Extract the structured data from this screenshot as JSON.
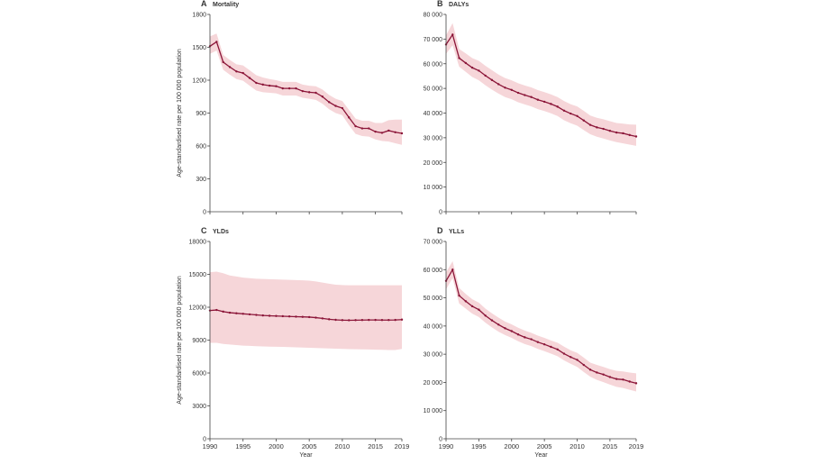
{
  "colors": {
    "line": "#8b1538",
    "band": "#f6d6d9",
    "axis": "#444444"
  },
  "chart_data": [
    {
      "type": "line",
      "panel_letter": "A",
      "title": "Mortality",
      "ylabel": "Age-standardised rate per 100 000 population",
      "xlabel": "",
      "ylim": [
        0,
        1800
      ],
      "yticks": [
        0,
        300,
        600,
        900,
        1200,
        1500,
        1800
      ],
      "ytick_labels": [
        "0",
        "300",
        "600",
        "900",
        "1200",
        "1500",
        "1800"
      ],
      "xlim": [
        1990,
        2019
      ],
      "xticks": [
        1990,
        1995,
        2000,
        2005,
        2010,
        2015,
        2019
      ],
      "xtick_labels": [],
      "x": [
        1990,
        1991,
        1992,
        1993,
        1994,
        1995,
        1996,
        1997,
        1998,
        1999,
        2000,
        2001,
        2002,
        2003,
        2004,
        2005,
        2006,
        2007,
        2008,
        2009,
        2010,
        2011,
        2012,
        2013,
        2014,
        2015,
        2016,
        2017,
        2018,
        2019
      ],
      "values": [
        1510,
        1550,
        1365,
        1320,
        1280,
        1265,
        1220,
        1175,
        1160,
        1150,
        1145,
        1125,
        1125,
        1125,
        1100,
        1090,
        1085,
        1050,
        1000,
        965,
        945,
        860,
        780,
        760,
        760,
        730,
        720,
        740,
        725,
        715
      ],
      "upper": [
        1600,
        1625,
        1430,
        1385,
        1345,
        1335,
        1290,
        1245,
        1225,
        1210,
        1200,
        1185,
        1185,
        1185,
        1160,
        1150,
        1145,
        1115,
        1065,
        1030,
        1010,
        930,
        850,
        830,
        830,
        810,
        810,
        835,
        840,
        840
      ],
      "lower": [
        1440,
        1470,
        1295,
        1250,
        1210,
        1195,
        1150,
        1105,
        1090,
        1085,
        1080,
        1060,
        1060,
        1060,
        1040,
        1030,
        1020,
        985,
        935,
        900,
        880,
        790,
        710,
        690,
        685,
        660,
        645,
        640,
        625,
        610
      ]
    },
    {
      "type": "line",
      "panel_letter": "B",
      "title": "DALYs",
      "ylabel": "",
      "xlabel": "",
      "ylim": [
        0,
        80000
      ],
      "yticks": [
        0,
        10000,
        20000,
        30000,
        40000,
        50000,
        60000,
        70000,
        80000
      ],
      "ytick_labels": [
        "0",
        "10 000",
        "20 000",
        "30 000",
        "40 000",
        "50 000",
        "60 000",
        "70 000",
        "80 000"
      ],
      "xlim": [
        1990,
        2019
      ],
      "xticks": [
        1990,
        1995,
        2000,
        2005,
        2010,
        2015,
        2019
      ],
      "xtick_labels": [],
      "x": [
        1990,
        1991,
        1992,
        1993,
        1994,
        1995,
        1996,
        1997,
        1998,
        1999,
        2000,
        2001,
        2002,
        2003,
        2004,
        2005,
        2006,
        2007,
        2008,
        2009,
        2010,
        2011,
        2012,
        2013,
        2014,
        2015,
        2016,
        2017,
        2018,
        2019
      ],
      "values": [
        67800,
        71800,
        62300,
        60300,
        58400,
        57200,
        55200,
        53400,
        51700,
        50300,
        49400,
        48200,
        47300,
        46500,
        45400,
        44600,
        43700,
        42600,
        41000,
        39800,
        38800,
        37000,
        35200,
        34200,
        33600,
        32800,
        32100,
        31800,
        31100,
        30500
      ],
      "upper": [
        71500,
        76500,
        66000,
        64200,
        62300,
        61200,
        59200,
        57400,
        55600,
        54200,
        53300,
        52100,
        51200,
        50400,
        49300,
        48500,
        47600,
        46500,
        44900,
        43600,
        42700,
        40900,
        39000,
        38100,
        37500,
        36700,
        36000,
        35700,
        35400,
        35300
      ],
      "lower": [
        64000,
        67500,
        58800,
        56700,
        54600,
        53300,
        51300,
        49500,
        47900,
        46500,
        45600,
        44400,
        43500,
        42700,
        41600,
        40800,
        39900,
        38800,
        37100,
        35900,
        34900,
        33100,
        31400,
        30400,
        29700,
        28900,
        28200,
        27700,
        27200,
        26700
      ]
    },
    {
      "type": "line",
      "panel_letter": "C",
      "title": "YLDs",
      "ylabel": "Age-standardised rate per 100 000 population",
      "xlabel": "Year",
      "ylim": [
        0,
        18000
      ],
      "yticks": [
        0,
        3000,
        6000,
        9000,
        12000,
        15000,
        18000
      ],
      "ytick_labels": [
        "0",
        "3000",
        "6000",
        "9000",
        "12000",
        "15000",
        "18000"
      ],
      "xlim": [
        1990,
        2019
      ],
      "xticks": [
        1990,
        1995,
        2000,
        2005,
        2010,
        2015,
        2019
      ],
      "xtick_labels": [
        "1990",
        "1995",
        "2000",
        "2005",
        "2010",
        "2015",
        "2019"
      ],
      "x": [
        1990,
        1991,
        1992,
        1993,
        1994,
        1995,
        1996,
        1997,
        1998,
        1999,
        2000,
        2001,
        2002,
        2003,
        2004,
        2005,
        2006,
        2007,
        2008,
        2009,
        2010,
        2011,
        2012,
        2013,
        2014,
        2015,
        2016,
        2017,
        2018,
        2019
      ],
      "values": [
        11700,
        11750,
        11600,
        11500,
        11450,
        11400,
        11350,
        11300,
        11250,
        11220,
        11200,
        11180,
        11160,
        11140,
        11120,
        11100,
        11050,
        10980,
        10900,
        10850,
        10820,
        10810,
        10820,
        10830,
        10840,
        10840,
        10830,
        10830,
        10840,
        10870
      ],
      "upper": [
        15200,
        15250,
        15100,
        14900,
        14800,
        14700,
        14650,
        14600,
        14580,
        14560,
        14540,
        14520,
        14500,
        14480,
        14460,
        14420,
        14350,
        14250,
        14150,
        14050,
        14020,
        14000,
        14000,
        14000,
        14000,
        14000,
        14000,
        14000,
        14000,
        14000
      ],
      "lower": [
        8750,
        8750,
        8650,
        8600,
        8550,
        8500,
        8480,
        8450,
        8420,
        8400,
        8390,
        8380,
        8360,
        8340,
        8320,
        8300,
        8280,
        8260,
        8240,
        8220,
        8200,
        8180,
        8170,
        8160,
        8150,
        8130,
        8120,
        8100,
        8100,
        8200
      ]
    },
    {
      "type": "line",
      "panel_letter": "D",
      "title": "YLLs",
      "ylabel": "",
      "xlabel": "Year",
      "ylim": [
        0,
        70000
      ],
      "yticks": [
        0,
        10000,
        20000,
        30000,
        40000,
        50000,
        60000,
        70000
      ],
      "ytick_labels": [
        "0",
        "10 000",
        "20 000",
        "30 000",
        "40 000",
        "50 000",
        "60 000",
        "70 000"
      ],
      "xlim": [
        1990,
        2019
      ],
      "xticks": [
        1990,
        1995,
        2000,
        2005,
        2010,
        2015,
        2019
      ],
      "xtick_labels": [
        "1990",
        "1995",
        "2000",
        "2005",
        "2010",
        "2015",
        "2019"
      ],
      "x": [
        1990,
        1991,
        1992,
        1993,
        1994,
        1995,
        1996,
        1997,
        1998,
        1999,
        2000,
        2001,
        2002,
        2003,
        2004,
        2005,
        2006,
        2007,
        2008,
        2009,
        2010,
        2011,
        2012,
        2013,
        2014,
        2015,
        2016,
        2017,
        2018,
        2019
      ],
      "values": [
        56000,
        60000,
        50800,
        48800,
        47000,
        45800,
        43700,
        42000,
        40500,
        39200,
        38200,
        37000,
        36000,
        35300,
        34300,
        33500,
        32600,
        31700,
        30200,
        29000,
        28000,
        26200,
        24500,
        23500,
        22800,
        21900,
        21200,
        21000,
        20300,
        19700
      ],
      "upper": [
        59000,
        63000,
        53500,
        51400,
        49500,
        48300,
        46200,
        44500,
        43000,
        41600,
        40600,
        39400,
        38400,
        37600,
        36600,
        35800,
        34900,
        34100,
        32700,
        31400,
        30500,
        28800,
        27000,
        26200,
        25500,
        24700,
        24100,
        23900,
        23500,
        23200
      ],
      "lower": [
        53000,
        57000,
        48000,
        46200,
        44400,
        43200,
        41200,
        39500,
        38000,
        36800,
        35800,
        34600,
        33600,
        32900,
        31900,
        31100,
        30200,
        29300,
        27800,
        26600,
        25500,
        23700,
        22000,
        20900,
        20100,
        19200,
        18400,
        18000,
        17400,
        16800
      ]
    }
  ]
}
